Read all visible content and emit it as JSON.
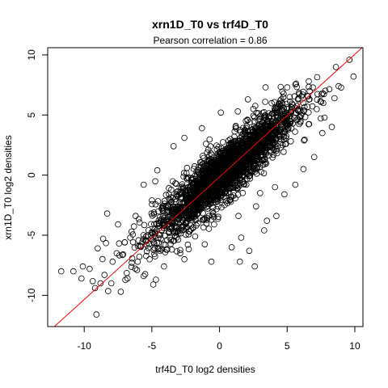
{
  "chart_data": {
    "type": "scatter",
    "title": "xrn1D_T0 vs trf4D_T0",
    "subtitle": "Pearson correlation =  0.86",
    "xlabel": "trf4D_T0 log2 densities",
    "ylabel": "xrn1D_T0 log2 densities",
    "xlim": [
      -12.7,
      10.6
    ],
    "ylim": [
      -12.6,
      10.6
    ],
    "x_ticks": [
      -10,
      -5,
      0,
      5,
      10
    ],
    "y_ticks": [
      -10,
      -5,
      0,
      5,
      10
    ],
    "x_tick_labels": [
      "-10",
      "-5",
      "0",
      "5",
      "10"
    ],
    "y_tick_labels": [
      "-10",
      "-5",
      "0",
      "5",
      "10"
    ],
    "grid": false,
    "point_style": "open-circle",
    "fit_line": {
      "slope": 1.02,
      "intercept": -0.15,
      "color": "#ff0000"
    },
    "series": [
      {
        "points": [
          [
            -11.7,
            -8.0
          ],
          [
            -10.8,
            -8.0
          ],
          [
            -10.1,
            -7.6
          ],
          [
            -9.6,
            -7.8
          ],
          [
            -10.2,
            -8.6
          ],
          [
            -9.2,
            -9.4
          ],
          [
            -9.1,
            -11.6
          ],
          [
            -8.5,
            -8.3
          ],
          [
            -8.0,
            -9.0
          ],
          [
            -9.0,
            -6.1
          ],
          [
            -8.6,
            -5.3
          ],
          [
            -8.3,
            -3.2
          ],
          [
            -7.6,
            -6.5
          ],
          [
            -7.0,
            -5.6
          ],
          [
            -6.8,
            -8.6
          ],
          [
            -6.1,
            -7.9
          ],
          [
            -5.6,
            -8.4
          ],
          [
            -4.9,
            -9.1
          ],
          [
            -4.7,
            -8.7
          ],
          [
            -4.1,
            -7.6
          ],
          [
            -3.6,
            -5.4
          ],
          [
            -3.5,
            -4.0
          ],
          [
            -2.9,
            -6.5
          ],
          [
            -2.1,
            -3.6
          ],
          [
            -1.2,
            -2.2
          ],
          [
            -0.6,
            -7.2
          ],
          [
            -0.1,
            -2.6
          ],
          [
            1.5,
            -7.2
          ],
          [
            1.6,
            -5.2
          ],
          [
            2.2,
            -6.3
          ],
          [
            2.6,
            -7.6
          ],
          [
            3.3,
            -4.6
          ],
          [
            3.5,
            -3.8
          ],
          [
            4.2,
            -3.4
          ],
          [
            4.8,
            -1.6
          ],
          [
            5.6,
            -0.8
          ],
          [
            6.2,
            0.5
          ],
          [
            7.0,
            1.5
          ],
          [
            7.6,
            3.5
          ],
          [
            8.3,
            4.0
          ],
          [
            8.8,
            7.4
          ],
          [
            9.6,
            9.6
          ],
          [
            9.9,
            8.2
          ],
          [
            8.5,
            6.4
          ],
          [
            6.6,
            7.8
          ],
          [
            5.0,
            7.3
          ],
          [
            3.4,
            7.3
          ],
          [
            2.1,
            6.3
          ],
          [
            1.2,
            4.1
          ],
          [
            0.1,
            5.2
          ],
          [
            -1.3,
            3.9
          ],
          [
            -2.6,
            3.1
          ],
          [
            -3.4,
            2.4
          ],
          [
            -4.6,
            0.4
          ],
          [
            -5.6,
            -0.8
          ],
          [
            -5.0,
            -2.1
          ],
          [
            -6.2,
            -3.4
          ],
          [
            -6.6,
            -5.2
          ],
          [
            -7.5,
            -4.1
          ],
          [
            -3.8,
            -2.5
          ],
          [
            -2.4,
            0.6
          ],
          [
            -1.0,
            2.6
          ],
          [
            0.8,
            3.0
          ],
          [
            2.5,
            5.5
          ],
          [
            4.5,
            6.2
          ],
          [
            5.8,
            6.3
          ],
          [
            4.1,
            -1.0
          ],
          [
            2.7,
            -2.6
          ],
          [
            1.4,
            -3.4
          ],
          [
            -0.4,
            -4.1
          ],
          [
            -1.8,
            -5.1
          ],
          [
            -4.3,
            -6.2
          ],
          [
            -5.3,
            -5.0
          ],
          [
            -6.5,
            -4.7
          ],
          [
            -7.9,
            -7.2
          ],
          [
            -8.8,
            -9.0
          ],
          [
            -7.3,
            -9.7
          ],
          [
            -2.6,
            -7.0
          ],
          [
            0.9,
            -6.0
          ],
          [
            3.0,
            -1.5
          ]
        ]
      }
    ]
  }
}
